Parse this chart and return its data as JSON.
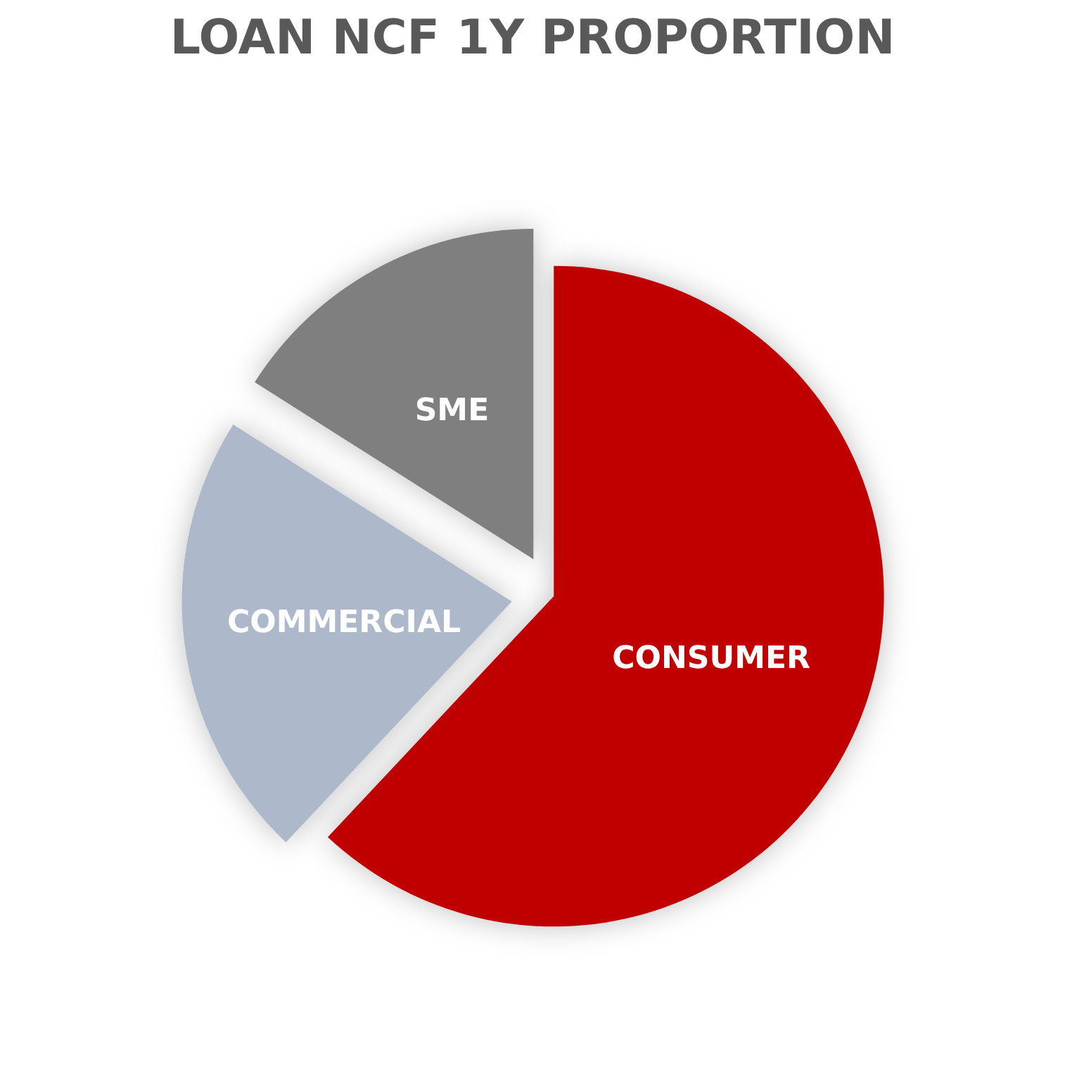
{
  "chart_data": {
    "type": "pie",
    "title": "LOAN NCF 1Y PROPORTION",
    "categories": [
      "CONSUMER",
      "COMMERCIAL",
      "SME"
    ],
    "values": [
      62,
      22,
      16
    ],
    "colors": [
      "#c00000",
      "#adb9ca",
      "#7f7f7f"
    ]
  }
}
